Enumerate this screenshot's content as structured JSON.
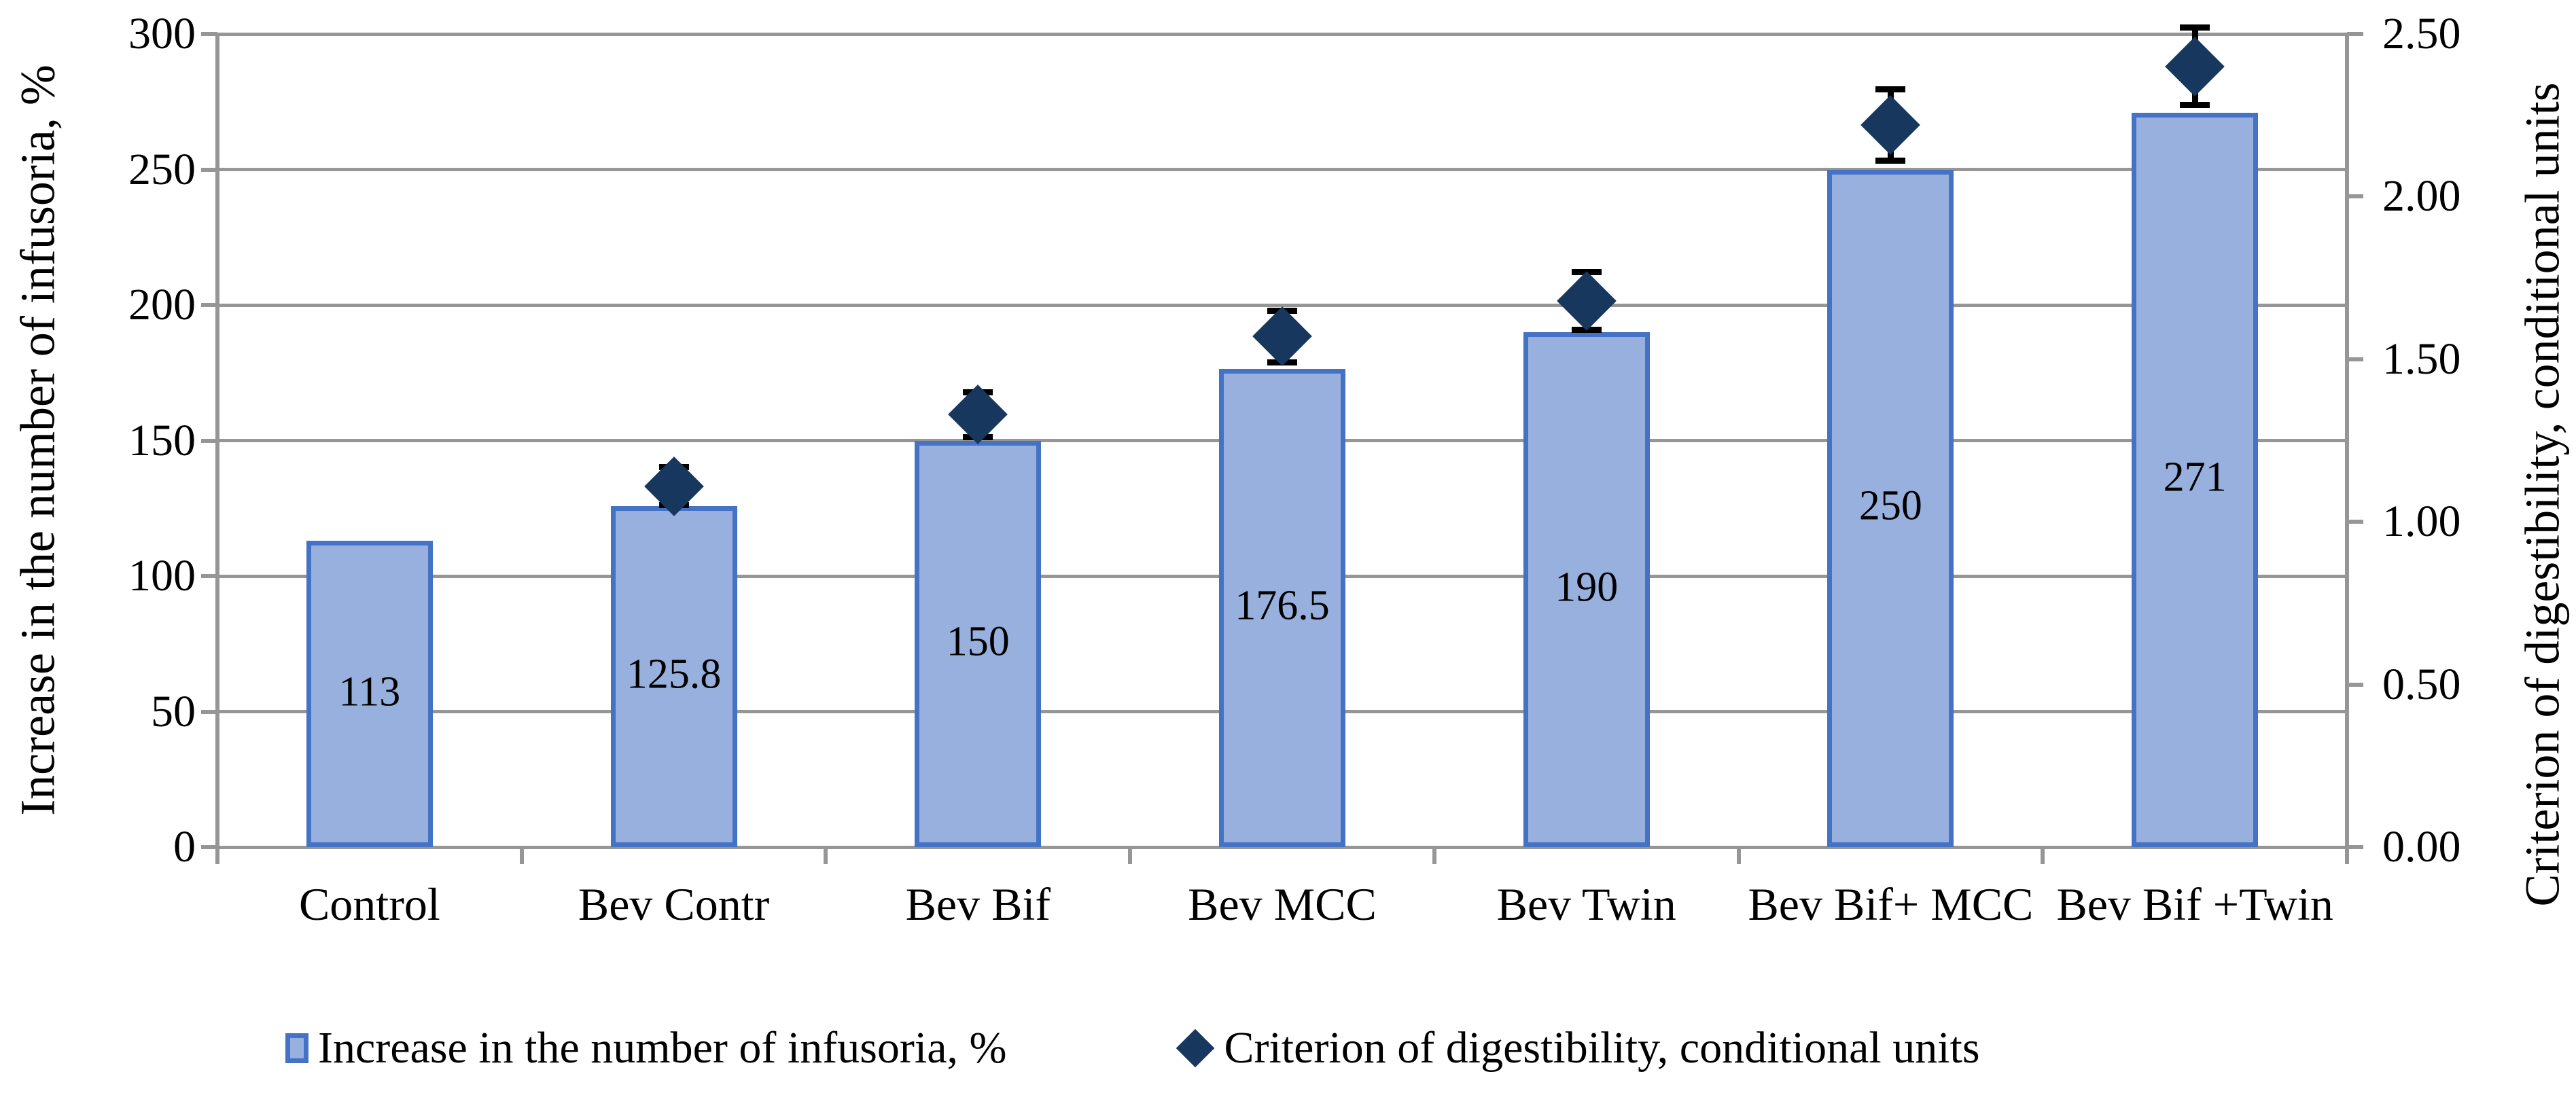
{
  "page": {
    "background": "#FFFFFF"
  },
  "legend": {
    "items": [
      {
        "label": "Increase in the number of infusoria, %",
        "marker": "bar-square"
      },
      {
        "label": "Criterion of digestibility, conditional units",
        "marker": "diamond"
      }
    ]
  },
  "chart_data": {
    "type": "bar",
    "subtype": "combo-bar-plus-diamond-scatter-dual-axis",
    "title": "",
    "categories": [
      "Control",
      "Bev Contr",
      "Bev Bif",
      "Bev MCC",
      "Bev Twin",
      "Bev Bif+ MCC",
      "Bev Bif +Twin"
    ],
    "series": [
      {
        "name": "Increase in the number of infusoria, %",
        "type": "bar",
        "axis": "left",
        "values": [
          113,
          125.8,
          150,
          176.5,
          190,
          250,
          271
        ],
        "data_labels": [
          "113",
          "125.8",
          "150",
          "176.5",
          "190",
          "250",
          "271"
        ]
      },
      {
        "name": "Criterion of digestibility, conditional units",
        "type": "scatter",
        "marker": "diamond",
        "axis": "right",
        "values": [
          null,
          1.11,
          1.33,
          1.57,
          1.68,
          2.22,
          2.4
        ],
        "error_bars": [
          null,
          0.06,
          0.07,
          0.08,
          0.09,
          0.11,
          0.12
        ]
      }
    ],
    "axes": {
      "left": {
        "label": "Increase in the number of infusoria, %",
        "min": 0,
        "max": 300,
        "step": 50,
        "tick_labels": [
          "0",
          "50",
          "100",
          "150",
          "200",
          "250",
          "300"
        ]
      },
      "right": {
        "label": "Criterion of digestibility, conditional units",
        "min": 0,
        "max": 2.5,
        "step": 0.5,
        "tick_labels": [
          "0.00",
          "0.50",
          "1.00",
          "1.50",
          "2.00",
          "2.50"
        ]
      },
      "x": {
        "tick_labels": [
          "Control",
          "Bev Contr",
          "Bev Bif",
          "Bev MCC",
          "Bev Twin",
          "Bev Bif+ MCC",
          "Bev Bif +Twin"
        ]
      }
    },
    "grid": true,
    "legend_position": "bottom",
    "colors": {
      "bar_fill": "#98B0DE",
      "bar_border": "#4472C4",
      "marker": "#17375E",
      "error_bar": "#000000",
      "gridline": "#969696",
      "axis_line": "#969696",
      "text": "#000000"
    }
  }
}
